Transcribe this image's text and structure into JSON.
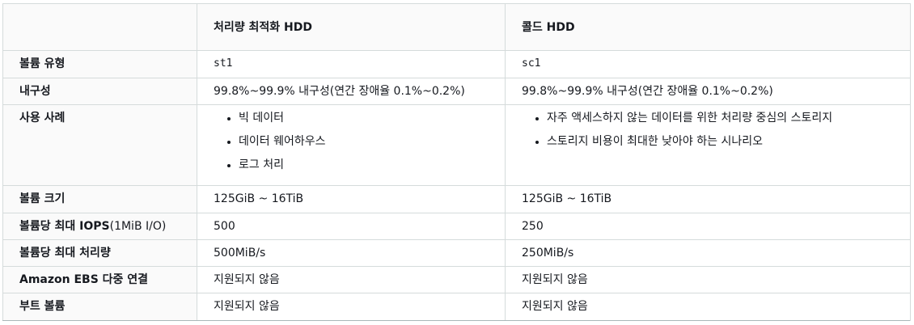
{
  "table": {
    "header": {
      "empty": "",
      "col1": "처리량 최적화 HDD",
      "col2": "콜드 HDD"
    },
    "rows": {
      "volume_type": {
        "label": "볼륨 유형",
        "col1": "st1",
        "col2": "sc1"
      },
      "durability": {
        "label": "내구성",
        "col1": "99.8%~99.9% 내구성(연간 장애율 0.1%~0.2%)",
        "col2": "99.8%~99.9% 내구성(연간 장애율 0.1%~0.2%)"
      },
      "use_cases": {
        "label": "사용 사례",
        "col1": [
          "빅 데이터",
          "데이터 웨어하우스",
          "로그 처리"
        ],
        "col2": [
          "자주 액세스하지 않는 데이터를 위한 처리량 중심의 스토리지",
          "스토리지 비용이 최대한 낮아야 하는 시나리오"
        ]
      },
      "volume_size": {
        "label": "볼륨 크기",
        "col1": "125GiB ~ 16TiB",
        "col2": "125GiB ~ 16TiB"
      },
      "max_iops": {
        "label_bold": "볼륨당 최대 IOPS",
        "label_light": "(1MiB I/O)",
        "col1": "500",
        "col2": "250"
      },
      "max_throughput": {
        "label": "볼륨당 최대 처리량",
        "col1": "500MiB/s",
        "col2": "250MiB/s"
      },
      "multi_attach": {
        "label": "Amazon EBS 다중 연결",
        "col1": "지원되지 않음",
        "col2": "지원되지 않음"
      },
      "boot_volume": {
        "label": "부트 볼륨",
        "col1": "지원되지 않음",
        "col2": "지원되지 않음"
      }
    }
  }
}
